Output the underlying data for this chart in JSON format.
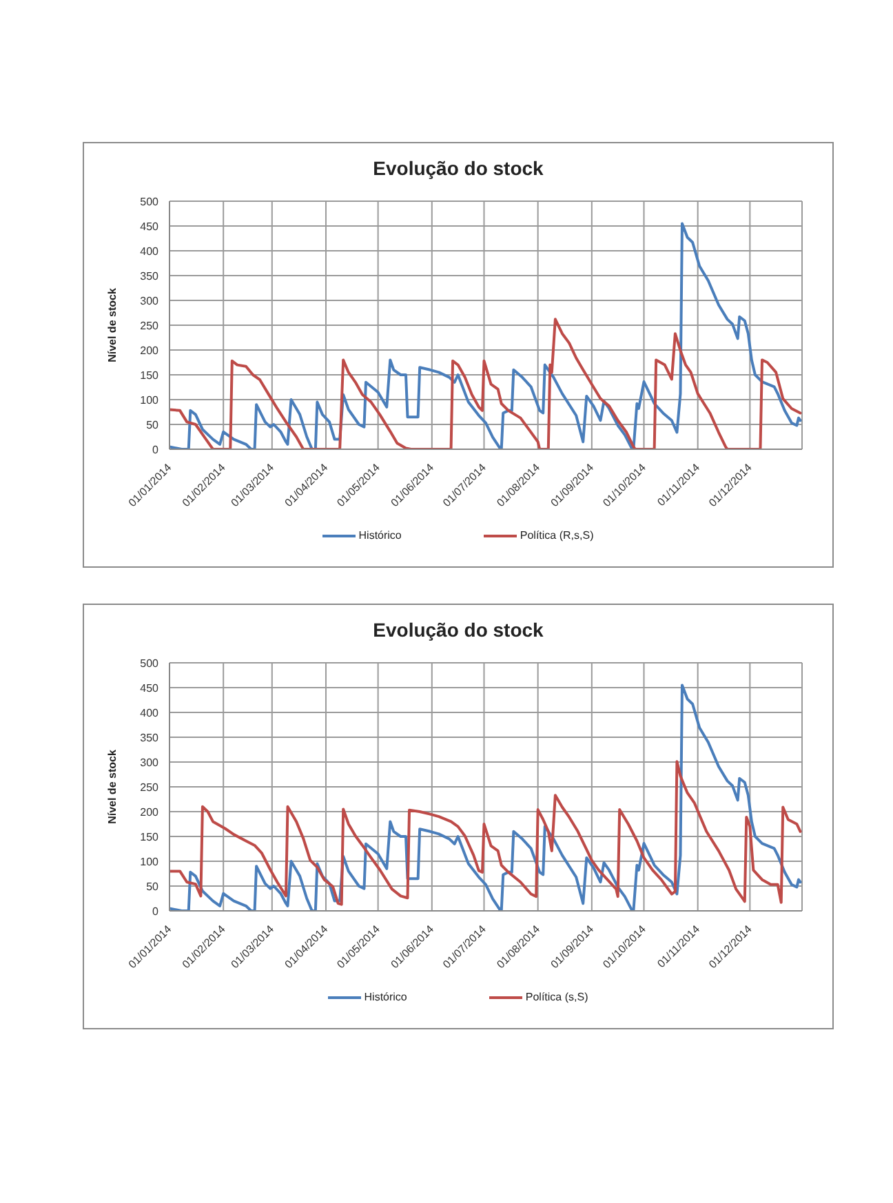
{
  "chart_data": [
    {
      "type": "line",
      "title": "Evolução do stock",
      "ylabel": "Nível de stock",
      "xlim": [
        "2014-01-01",
        "2014-12-31"
      ],
      "xticks": [
        {
          "value": "2014-01-01",
          "label": "01/01/2014"
        },
        {
          "value": "2014-02-01",
          "label": "01/02/2014"
        },
        {
          "value": "2014-03-01",
          "label": "01/03/2014"
        },
        {
          "value": "2014-04-01",
          "label": "01/04/2014"
        },
        {
          "value": "2014-05-01",
          "label": "01/05/2014"
        },
        {
          "value": "2014-06-01",
          "label": "01/06/2014"
        },
        {
          "value": "2014-07-01",
          "label": "01/07/2014"
        },
        {
          "value": "2014-08-01",
          "label": "01/08/2014"
        },
        {
          "value": "2014-09-01",
          "label": "01/09/2014"
        },
        {
          "value": "2014-10-01",
          "label": "01/10/2014"
        },
        {
          "value": "2014-11-01",
          "label": "01/11/2014"
        },
        {
          "value": "2014-12-01",
          "label": "01/12/2014"
        }
      ],
      "ylim": [
        0,
        500
      ],
      "yticks": [
        0,
        50,
        100,
        150,
        200,
        250,
        300,
        350,
        400,
        450,
        500
      ],
      "grid": true,
      "legend": "bottom",
      "series": [
        {
          "name": "Histórico",
          "color": "#4a7ebb",
          "x": [
            "2014-01-01",
            "2014-01-08",
            "2014-01-12",
            "2014-01-13",
            "2014-01-16",
            "2014-01-20",
            "2014-01-26",
            "2014-01-30",
            "2014-02-01",
            "2014-02-07",
            "2014-02-14",
            "2014-02-17",
            "2014-02-19",
            "2014-02-20",
            "2014-02-25",
            "2014-02-28",
            "2014-03-02",
            "2014-03-06",
            "2014-03-09",
            "2014-03-10",
            "2014-03-12",
            "2014-03-17",
            "2014-03-21",
            "2014-03-24",
            "2014-03-26",
            "2014-03-27",
            "2014-03-30",
            "2014-04-03",
            "2014-04-06",
            "2014-04-09",
            "2014-04-11",
            "2014-04-14",
            "2014-04-20",
            "2014-04-23",
            "2014-04-24",
            "2014-05-01",
            "2014-05-06",
            "2014-05-08",
            "2014-05-10",
            "2014-05-14",
            "2014-05-17",
            "2014-05-18",
            "2014-05-24",
            "2014-05-25",
            "2014-05-31",
            "2014-06-05",
            "2014-06-11",
            "2014-06-14",
            "2014-06-16",
            "2014-06-22",
            "2014-06-28",
            "2014-07-02",
            "2014-07-06",
            "2014-07-10",
            "2014-07-11",
            "2014-07-12",
            "2014-07-15",
            "2014-07-17",
            "2014-07-18",
            "2014-07-23",
            "2014-07-28",
            "2014-08-02",
            "2014-08-04",
            "2014-08-05",
            "2014-08-10",
            "2014-08-15",
            "2014-08-23",
            "2014-08-27",
            "2014-08-29",
            "2014-09-02",
            "2014-09-06",
            "2014-09-08",
            "2014-09-11",
            "2014-09-16",
            "2014-09-20",
            "2014-09-24",
            "2014-09-25",
            "2014-09-27",
            "2014-09-28",
            "2014-10-01",
            "2014-10-05",
            "2014-10-07",
            "2014-10-12",
            "2014-10-17",
            "2014-10-20",
            "2014-10-22",
            "2014-10-23",
            "2014-10-26",
            "2014-10-29",
            "2014-11-02",
            "2014-11-07",
            "2014-11-13",
            "2014-11-18",
            "2014-11-21",
            "2014-11-24",
            "2014-11-25",
            "2014-11-28",
            "2014-11-30",
            "2014-12-02",
            "2014-12-04",
            "2014-12-08",
            "2014-12-15",
            "2014-12-17",
            "2014-12-21",
            "2014-12-25",
            "2014-12-28",
            "2014-12-29",
            "2014-12-30"
          ],
          "values": [
            5,
            0,
            0,
            78,
            70,
            40,
            20,
            10,
            35,
            20,
            10,
            0,
            0,
            90,
            55,
            45,
            50,
            35,
            15,
            10,
            100,
            70,
            25,
            0,
            0,
            95,
            70,
            55,
            20,
            20,
            110,
            80,
            50,
            45,
            135,
            115,
            85,
            180,
            160,
            150,
            150,
            65,
            65,
            165,
            160,
            155,
            145,
            135,
            150,
            95,
            68,
            53,
            24,
            3,
            0,
            73,
            78,
            78,
            160,
            145,
            126,
            78,
            73,
            170,
            145,
            112,
            68,
            15,
            107,
            87,
            58,
            97,
            82,
            48,
            29,
            2,
            0,
            92,
            82,
            136,
            107,
            92,
            73,
            58,
            34,
            112,
            455,
            427,
            417,
            369,
            340,
            291,
            262,
            252,
            223,
            267,
            259,
            233,
            180,
            150,
            136,
            126,
            112,
            78,
            53,
            48,
            63,
            58
          ]
        },
        {
          "name": "Política (R,s,S)",
          "color": "#be4b48",
          "x": [
            "2014-01-01",
            "2014-01-07",
            "2014-01-11",
            "2014-01-16",
            "2014-01-22",
            "2014-01-26",
            "2014-02-05",
            "2014-02-06",
            "2014-02-09",
            "2014-02-14",
            "2014-02-18",
            "2014-02-22",
            "2014-02-28",
            "2014-03-04",
            "2014-03-09",
            "2014-03-15",
            "2014-03-19",
            "2014-04-09",
            "2014-04-11",
            "2014-04-14",
            "2014-04-18",
            "2014-04-22",
            "2014-04-27",
            "2014-05-02",
            "2014-05-08",
            "2014-05-12",
            "2014-05-17",
            "2014-05-20",
            "2014-06-12",
            "2014-06-13",
            "2014-06-16",
            "2014-06-20",
            "2014-06-24",
            "2014-06-28",
            "2014-06-30",
            "2014-07-01",
            "2014-07-05",
            "2014-07-09",
            "2014-07-11",
            "2014-07-15",
            "2014-07-22",
            "2014-07-27",
            "2014-08-01",
            "2014-08-02",
            "2014-08-07",
            "2014-08-08",
            "2014-08-09",
            "2014-08-11",
            "2014-08-15",
            "2014-08-19",
            "2014-08-23",
            "2014-08-27",
            "2014-09-01",
            "2014-09-06",
            "2014-09-11",
            "2014-09-16",
            "2014-09-21",
            "2014-09-25",
            "2014-09-26",
            "2014-10-07",
            "2014-10-08",
            "2014-10-13",
            "2014-10-17",
            "2014-10-19",
            "2014-10-22",
            "2014-10-25",
            "2014-10-28",
            "2014-11-01",
            "2014-11-08",
            "2014-11-13",
            "2014-11-17",
            "2014-11-18",
            "2014-12-07",
            "2014-12-08",
            "2014-12-11",
            "2014-12-16",
            "2014-12-20",
            "2014-12-25",
            "2014-12-30"
          ],
          "values": [
            80,
            78,
            55,
            50,
            20,
            0,
            0,
            178,
            170,
            167,
            150,
            140,
            105,
            82,
            55,
            25,
            0,
            0,
            180,
            155,
            135,
            110,
            95,
            70,
            36,
            12,
            2,
            0,
            0,
            178,
            170,
            145,
            110,
            85,
            78,
            178,
            131,
            121,
            92,
            78,
            63,
            39,
            15,
            0,
            0,
            170,
            155,
            262,
            233,
            214,
            184,
            160,
            131,
            102,
            87,
            58,
            34,
            5,
            0,
            0,
            180,
            170,
            141,
            233,
            199,
            170,
            155,
            112,
            73,
            34,
            5,
            0,
            0,
            180,
            175,
            155,
            102,
            82,
            73
          ]
        }
      ]
    },
    {
      "type": "line",
      "title": "Evolução do stock",
      "ylabel": "Nível de stock",
      "xlim": [
        "2014-01-01",
        "2014-12-31"
      ],
      "xticks": [
        {
          "value": "2014-01-01",
          "label": "01/01/2014"
        },
        {
          "value": "2014-02-01",
          "label": "01/02/2014"
        },
        {
          "value": "2014-03-01",
          "label": "01/03/2014"
        },
        {
          "value": "2014-04-01",
          "label": "01/04/2014"
        },
        {
          "value": "2014-05-01",
          "label": "01/05/2014"
        },
        {
          "value": "2014-06-01",
          "label": "01/06/2014"
        },
        {
          "value": "2014-07-01",
          "label": "01/07/2014"
        },
        {
          "value": "2014-08-01",
          "label": "01/08/2014"
        },
        {
          "value": "2014-09-01",
          "label": "01/09/2014"
        },
        {
          "value": "2014-10-01",
          "label": "01/10/2014"
        },
        {
          "value": "2014-11-01",
          "label": "01/11/2014"
        },
        {
          "value": "2014-12-01",
          "label": "01/12/2014"
        }
      ],
      "ylim": [
        0,
        500
      ],
      "yticks": [
        0,
        50,
        100,
        150,
        200,
        250,
        300,
        350,
        400,
        450,
        500
      ],
      "grid": true,
      "legend": "bottom",
      "series": [
        {
          "name": "Histórico",
          "color": "#4a7ebb",
          "x": [
            "2014-01-01",
            "2014-01-08",
            "2014-01-12",
            "2014-01-13",
            "2014-01-16",
            "2014-01-20",
            "2014-01-26",
            "2014-01-30",
            "2014-02-01",
            "2014-02-07",
            "2014-02-14",
            "2014-02-17",
            "2014-02-19",
            "2014-02-20",
            "2014-02-25",
            "2014-02-28",
            "2014-03-02",
            "2014-03-06",
            "2014-03-09",
            "2014-03-10",
            "2014-03-12",
            "2014-03-17",
            "2014-03-21",
            "2014-03-24",
            "2014-03-26",
            "2014-03-27",
            "2014-03-30",
            "2014-04-03",
            "2014-04-06",
            "2014-04-09",
            "2014-04-11",
            "2014-04-14",
            "2014-04-20",
            "2014-04-23",
            "2014-04-24",
            "2014-05-01",
            "2014-05-06",
            "2014-05-08",
            "2014-05-10",
            "2014-05-14",
            "2014-05-17",
            "2014-05-18",
            "2014-05-24",
            "2014-05-25",
            "2014-05-31",
            "2014-06-05",
            "2014-06-11",
            "2014-06-14",
            "2014-06-16",
            "2014-06-22",
            "2014-06-28",
            "2014-07-02",
            "2014-07-06",
            "2014-07-10",
            "2014-07-11",
            "2014-07-12",
            "2014-07-15",
            "2014-07-17",
            "2014-07-18",
            "2014-07-23",
            "2014-07-28",
            "2014-08-02",
            "2014-08-04",
            "2014-08-05",
            "2014-08-10",
            "2014-08-15",
            "2014-08-23",
            "2014-08-27",
            "2014-08-29",
            "2014-09-02",
            "2014-09-06",
            "2014-09-08",
            "2014-09-11",
            "2014-09-16",
            "2014-09-20",
            "2014-09-24",
            "2014-09-25",
            "2014-09-27",
            "2014-09-28",
            "2014-10-01",
            "2014-10-05",
            "2014-10-07",
            "2014-10-12",
            "2014-10-17",
            "2014-10-20",
            "2014-10-22",
            "2014-10-23",
            "2014-10-26",
            "2014-10-29",
            "2014-11-02",
            "2014-11-07",
            "2014-11-13",
            "2014-11-18",
            "2014-11-21",
            "2014-11-24",
            "2014-11-25",
            "2014-11-28",
            "2014-11-30",
            "2014-12-02",
            "2014-12-04",
            "2014-12-08",
            "2014-12-15",
            "2014-12-17",
            "2014-12-21",
            "2014-12-25",
            "2014-12-28",
            "2014-12-29",
            "2014-12-30"
          ],
          "values": [
            5,
            0,
            0,
            78,
            70,
            40,
            20,
            10,
            35,
            20,
            10,
            0,
            0,
            90,
            55,
            45,
            50,
            35,
            15,
            10,
            100,
            70,
            25,
            0,
            0,
            95,
            70,
            55,
            20,
            20,
            110,
            80,
            50,
            45,
            135,
            115,
            85,
            180,
            160,
            150,
            150,
            65,
            65,
            165,
            160,
            155,
            145,
            135,
            150,
            95,
            68,
            53,
            24,
            3,
            0,
            73,
            78,
            78,
            160,
            145,
            126,
            78,
            73,
            170,
            145,
            112,
            68,
            15,
            107,
            87,
            58,
            97,
            82,
            48,
            29,
            2,
            0,
            92,
            82,
            136,
            107,
            92,
            73,
            58,
            34,
            112,
            455,
            427,
            417,
            369,
            340,
            291,
            262,
            252,
            223,
            267,
            259,
            233,
            180,
            150,
            136,
            126,
            112,
            78,
            53,
            48,
            63,
            58
          ]
        },
        {
          "name": "Política (s,S)",
          "color": "#be4b48",
          "x": [
            "2014-01-01",
            "2014-01-07",
            "2014-01-11",
            "2014-01-16",
            "2014-01-19",
            "2014-01-20",
            "2014-01-23",
            "2014-01-26",
            "2014-02-02",
            "2014-02-07",
            "2014-02-14",
            "2014-02-19",
            "2014-02-23",
            "2014-02-28",
            "2014-03-04",
            "2014-03-09",
            "2014-03-10",
            "2014-03-15",
            "2014-03-19",
            "2014-03-23",
            "2014-03-27",
            "2014-03-31",
            "2014-04-05",
            "2014-04-08",
            "2014-04-10",
            "2014-04-11",
            "2014-04-14",
            "2014-04-18",
            "2014-04-22",
            "2014-04-27",
            "2014-05-02",
            "2014-05-09",
            "2014-05-14",
            "2014-05-18",
            "2014-05-19",
            "2014-05-25",
            "2014-05-31",
            "2014-06-05",
            "2014-06-12",
            "2014-06-16",
            "2014-06-20",
            "2014-06-25",
            "2014-06-28",
            "2014-06-30",
            "2014-07-01",
            "2014-07-05",
            "2014-07-09",
            "2014-07-11",
            "2014-07-15",
            "2014-07-22",
            "2014-07-28",
            "2014-07-31",
            "2014-08-01",
            "2014-08-04",
            "2014-08-07",
            "2014-08-09",
            "2014-08-11",
            "2014-08-15",
            "2014-08-19",
            "2014-08-24",
            "2014-09-01",
            "2014-09-05",
            "2014-09-10",
            "2014-09-15",
            "2014-09-16",
            "2014-09-17",
            "2014-09-22",
            "2014-09-27",
            "2014-10-01",
            "2014-10-06",
            "2014-10-11",
            "2014-10-17",
            "2014-10-19",
            "2014-10-20",
            "2014-10-22",
            "2014-10-26",
            "2014-10-30",
            "2014-11-06",
            "2014-11-13",
            "2014-11-19",
            "2014-11-23",
            "2014-11-27",
            "2014-11-28",
            "2014-11-29",
            "2014-12-01",
            "2014-12-03",
            "2014-12-08",
            "2014-12-13",
            "2014-12-17",
            "2014-12-19",
            "2014-12-20",
            "2014-12-23",
            "2014-12-28",
            "2014-12-30"
          ],
          "values": [
            80,
            80,
            58,
            54,
            30,
            210,
            200,
            180,
            166,
            154,
            141,
            132,
            117,
            83,
            58,
            30,
            210,
            180,
            146,
            102,
            88,
            63,
            49,
            15,
            13,
            205,
            175,
            151,
            132,
            107,
            83,
            44,
            30,
            26,
            203,
            200,
            195,
            190,
            180,
            170,
            151,
            112,
            81,
            78,
            175,
            131,
            121,
            92,
            78,
            58,
            34,
            29,
            204,
            184,
            160,
            121,
            233,
            209,
            189,
            160,
            102,
            82,
            63,
            44,
            29,
            204,
            175,
            141,
            107,
            82,
            63,
            34,
            39,
            301,
            272,
            238,
            218,
            160,
            121,
            82,
            44,
            24,
            19,
            189,
            170,
            82,
            63,
            53,
            53,
            17,
            209,
            184,
            175,
            160
          ]
        }
      ]
    }
  ]
}
